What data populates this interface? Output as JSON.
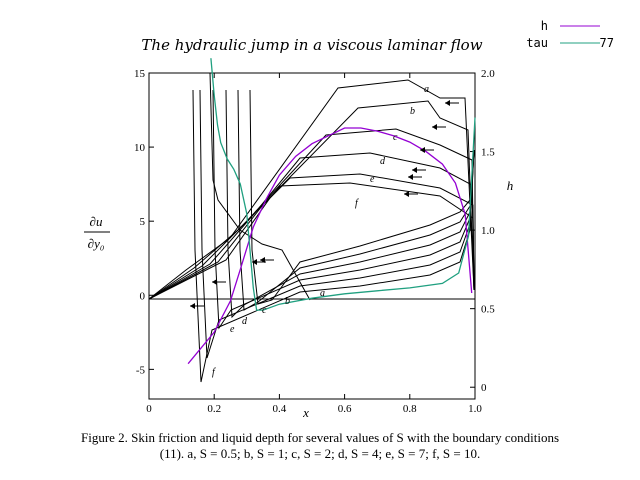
{
  "chart_data": {
    "type": "line",
    "title": "The hydraulic jump in a viscous laminar flow",
    "xlabel": "x",
    "ylabel_left": "∂u/∂y0",
    "ylabel_right": "h",
    "xlim": [
      0,
      1.0
    ],
    "ylim_left": [
      -7,
      15
    ],
    "ylim_right": [
      -0.075,
      2.0
    ],
    "x_ticks": [
      "0",
      "0.2",
      "0.4",
      "0.6",
      "0.8",
      "1.0"
    ],
    "y_left_ticks": [
      "-5",
      "0",
      "5",
      "10",
      "15"
    ],
    "y_right_ticks": [
      "0",
      "0.5",
      "1.0",
      "1.5",
      "2.0"
    ],
    "grid": false,
    "legend_position": "top-right",
    "curve_labels": [
      "a",
      "b",
      "c",
      "d",
      "e",
      "f"
    ],
    "series": [
      {
        "name": "h",
        "color": "#9400d3",
        "axis": "right",
        "x": [
          0.12,
          0.2,
          0.25,
          0.28,
          0.32,
          0.36,
          0.4,
          0.45,
          0.5,
          0.55,
          0.6,
          0.65,
          0.7,
          0.75,
          0.8,
          0.85,
          0.9,
          0.94,
          0.97,
          0.99
        ],
        "y": [
          0.15,
          0.35,
          0.55,
          0.75,
          1.02,
          1.2,
          1.35,
          1.47,
          1.55,
          1.6,
          1.65,
          1.65,
          1.63,
          1.6,
          1.56,
          1.5,
          1.42,
          1.3,
          1.1,
          0.6
        ]
      },
      {
        "name": "tau",
        "color": "#20a080",
        "axis": "left",
        "x": [
          0.19,
          0.2,
          0.21,
          0.22,
          0.24,
          0.26,
          0.28,
          0.3,
          0.32,
          0.33,
          0.35,
          0.4,
          0.5,
          0.6,
          0.7,
          0.8,
          0.9,
          0.95,
          0.98,
          1.0
        ],
        "y": [
          16,
          13.5,
          11.5,
          10.3,
          9.2,
          8.5,
          7.5,
          5.5,
          0.5,
          -1.0,
          -1.0,
          -0.6,
          -0.2,
          0.1,
          0.3,
          0.5,
          0.8,
          1.5,
          4.0,
          12.0
        ]
      }
    ]
  },
  "legend": {
    "entries": [
      {
        "label": "h",
        "value": "",
        "color": "#9400d3"
      },
      {
        "label": "tau",
        "value": "77",
        "color": "#20a080"
      }
    ]
  },
  "caption": {
    "line1": "Figure 2. Skin friction and liquid depth for several values of S with the boundary conditions",
    "line2": "(11). a, S = 0.5; b, S = 1; c, S = 2; d, S = 4; e, S = 7; f, S = 10."
  }
}
